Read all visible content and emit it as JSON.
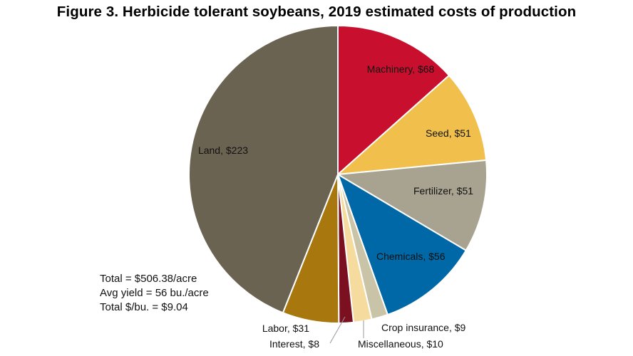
{
  "chart_data": {
    "type": "pie",
    "title": "Figure 3. Herbicide tolerant soybeans, 2019 estimated costs of production",
    "start": "top",
    "direction": "clockwise",
    "slices": [
      {
        "label": "Machinery, $68",
        "value": 68,
        "color": "#c8102e"
      },
      {
        "label": "Seed, $51",
        "value": 51,
        "color": "#f0bf4c"
      },
      {
        "label": "Fertilizer, $51",
        "value": 51,
        "color": "#a8a290"
      },
      {
        "label": "Chemicals, $56",
        "value": 56,
        "color": "#0068a6"
      },
      {
        "label": "Crop insurance, $9",
        "value": 9,
        "color": "#c9c4a8"
      },
      {
        "label": "Miscellaneous, $10",
        "value": 10,
        "color": "#f5dc9e"
      },
      {
        "label": "Interest, $8",
        "value": 8,
        "color": "#7b1020"
      },
      {
        "label": "Labor, $31",
        "value": 31,
        "color": "#a8780f"
      },
      {
        "label": "Land, $223",
        "value": 223,
        "color": "#6b6352"
      }
    ],
    "annotations": [
      "Total = $506.38/acre",
      "Avg yield = 56 bu./acre",
      "Total $/bu. = $9.04"
    ]
  }
}
